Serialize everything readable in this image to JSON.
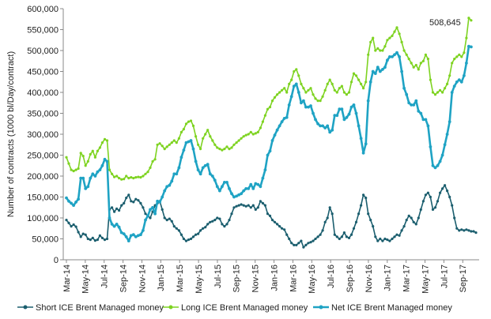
{
  "chart_data": {
    "type": "line",
    "ylabel": "Number of contracts (1000 bl/Day/contract)",
    "xlabel": "",
    "ylim": [
      0,
      600000
    ],
    "yticks": [
      0,
      50000,
      100000,
      150000,
      200000,
      250000,
      300000,
      350000,
      400000,
      450000,
      500000,
      550000,
      600000
    ],
    "ytick_labels": [
      "0",
      "50,000",
      "100,000",
      "150,000",
      "200,000",
      "250,000",
      "300,000",
      "350,000",
      "400,000",
      "450,000",
      "500,000",
      "550,000",
      "600,000"
    ],
    "xtick_labels": [
      "Mar-14",
      "May-14",
      "Jul-14",
      "Sep-14",
      "Nov-14",
      "Jan-15",
      "Mar-15",
      "May-15",
      "Jul-15",
      "Sep-15",
      "Nov-15",
      "Jan-16",
      "Mar-16",
      "May-16",
      "Jul-16",
      "Sep-16",
      "Nov-16",
      "Jan-17",
      "Mar-17",
      "May-17",
      "Jul-17",
      "Sep-17"
    ],
    "x_period": "weekly, Mar-14 to Oct-17",
    "grid": false,
    "legend_position": "bottom",
    "annotation": {
      "text": "508,645",
      "series": "Net ICE Brent Managed money"
    },
    "series": [
      {
        "name": "Short ICE Brent Managed money",
        "color": "#1b5e6e",
        "values": [
          95000,
          88000,
          80000,
          84000,
          79000,
          66000,
          55000,
          62000,
          60000,
          50000,
          48000,
          52000,
          46000,
          48000,
          58000,
          52000,
          48000,
          50000,
          120000,
          125000,
          115000,
          122000,
          118000,
          130000,
          135000,
          148000,
          155000,
          140000,
          138000,
          145000,
          142000,
          135000,
          125000,
          110000,
          105000,
          100000,
          115000,
          130000,
          135000,
          140000,
          120000,
          100000,
          95000,
          98000,
          92000,
          80000,
          75000,
          70000,
          60000,
          50000,
          45000,
          48000,
          50000,
          55000,
          60000,
          62000,
          70000,
          75000,
          78000,
          85000,
          90000,
          92000,
          95000,
          100000,
          98000,
          85000,
          80000,
          85000,
          95000,
          110000,
          125000,
          128000,
          130000,
          132000,
          130000,
          128000,
          130000,
          125000,
          130000,
          120000,
          125000,
          140000,
          135000,
          130000,
          110000,
          105000,
          95000,
          90000,
          85000,
          80000,
          75000,
          72000,
          60000,
          50000,
          40000,
          35000,
          35000,
          40000,
          45000,
          30000,
          35000,
          40000,
          42000,
          45000,
          50000,
          55000,
          60000,
          70000,
          90000,
          100000,
          125000,
          110000,
          60000,
          55000,
          50000,
          55000,
          65000,
          55000,
          52000,
          60000,
          75000,
          90000,
          110000,
          130000,
          155000,
          148000,
          110000,
          95000,
          80000,
          55000,
          45000,
          50000,
          45000,
          50000,
          48000,
          45000,
          50000,
          55000,
          60000,
          58000,
          70000,
          80000,
          95000,
          105000,
          100000,
          90000,
          85000,
          100000,
          120000,
          140000,
          155000,
          160000,
          150000,
          120000,
          125000,
          140000,
          160000,
          170000,
          178000,
          165000,
          150000,
          130000,
          100000,
          75000,
          70000,
          72000,
          70000,
          72000,
          70000,
          68000,
          68000,
          65000
        ]
      },
      {
        "name": "Long ICE Brent Managed money",
        "color": "#7ed321",
        "values": [
          245000,
          230000,
          215000,
          212000,
          215000,
          218000,
          255000,
          248000,
          225000,
          235000,
          252000,
          260000,
          245000,
          260000,
          268000,
          280000,
          288000,
          285000,
          215000,
          205000,
          198000,
          200000,
          195000,
          192000,
          193000,
          200000,
          195000,
          197000,
          195000,
          197000,
          198000,
          197000,
          200000,
          205000,
          210000,
          220000,
          235000,
          240000,
          275000,
          278000,
          272000,
          265000,
          270000,
          275000,
          280000,
          285000,
          280000,
          290000,
          305000,
          312000,
          325000,
          330000,
          332000,
          320000,
          295000,
          275000,
          265000,
          290000,
          300000,
          310000,
          295000,
          285000,
          275000,
          268000,
          265000,
          262000,
          265000,
          270000,
          265000,
          268000,
          275000,
          280000,
          285000,
          290000,
          295000,
          298000,
          300000,
          305000,
          300000,
          302000,
          305000,
          315000,
          330000,
          345000,
          360000,
          365000,
          380000,
          388000,
          395000,
          400000,
          405000,
          410000,
          400000,
          420000,
          430000,
          450000,
          455000,
          440000,
          420000,
          410000,
          400000,
          405000,
          410000,
          395000,
          385000,
          380000,
          380000,
          390000,
          405000,
          420000,
          430000,
          420000,
          405000,
          400000,
          410000,
          415000,
          400000,
          395000,
          400000,
          425000,
          445000,
          440000,
          430000,
          420000,
          410000,
          425000,
          490000,
          520000,
          530000,
          500000,
          505000,
          500000,
          500000,
          510000,
          525000,
          530000,
          535000,
          545000,
          555000,
          540000,
          520000,
          500000,
          490000,
          480000,
          470000,
          460000,
          465000,
          455000,
          470000,
          475000,
          490000,
          480000,
          430000,
          400000,
          395000,
          400000,
          405000,
          400000,
          410000,
          420000,
          440000,
          470000,
          480000,
          485000,
          490000,
          485000,
          495000,
          530000,
          578000,
          572000
        ]
      },
      {
        "name": "Net ICE Brent Managed money",
        "color": "#1fa3c4",
        "values": [
          148000,
          140000,
          135000,
          130000,
          138000,
          145000,
          195000,
          195000,
          170000,
          175000,
          195000,
          205000,
          200000,
          210000,
          215000,
          225000,
          240000,
          235000,
          100000,
          85000,
          80000,
          85000,
          78000,
          65000,
          62000,
          55000,
          45000,
          58000,
          60000,
          55000,
          58000,
          60000,
          70000,
          95000,
          105000,
          120000,
          125000,
          110000,
          140000,
          138000,
          150000,
          165000,
          175000,
          178000,
          188000,
          205000,
          205000,
          220000,
          245000,
          262000,
          280000,
          282000,
          285000,
          265000,
          235000,
          215000,
          205000,
          220000,
          225000,
          228000,
          205000,
          200000,
          190000,
          175000,
          165000,
          175000,
          185000,
          185000,
          170000,
          158000,
          150000,
          152000,
          155000,
          158000,
          165000,
          170000,
          170000,
          180000,
          170000,
          182000,
          180000,
          175000,
          195000,
          215000,
          250000,
          260000,
          285000,
          298000,
          310000,
          320000,
          330000,
          338000,
          340000,
          370000,
          390000,
          415000,
          420000,
          400000,
          375000,
          380000,
          365000,
          365000,
          368000,
          350000,
          335000,
          325000,
          320000,
          320000,
          315000,
          320000,
          305000,
          310000,
          345000,
          345000,
          360000,
          360000,
          335000,
          340000,
          348000,
          365000,
          370000,
          350000,
          320000,
          290000,
          255000,
          277000,
          380000,
          425000,
          450000,
          445000,
          460000,
          450000,
          455000,
          460000,
          477000,
          485000,
          485000,
          490000,
          495000,
          485000,
          450000,
          410000,
          395000,
          375000,
          370000,
          370000,
          380000,
          355000,
          350000,
          335000,
          335000,
          320000,
          270000,
          225000,
          220000,
          225000,
          235000,
          250000,
          275000,
          300000,
          330000,
          400000,
          415000,
          425000,
          430000,
          425000,
          440000,
          470000,
          510000,
          508645
        ]
      }
    ]
  }
}
